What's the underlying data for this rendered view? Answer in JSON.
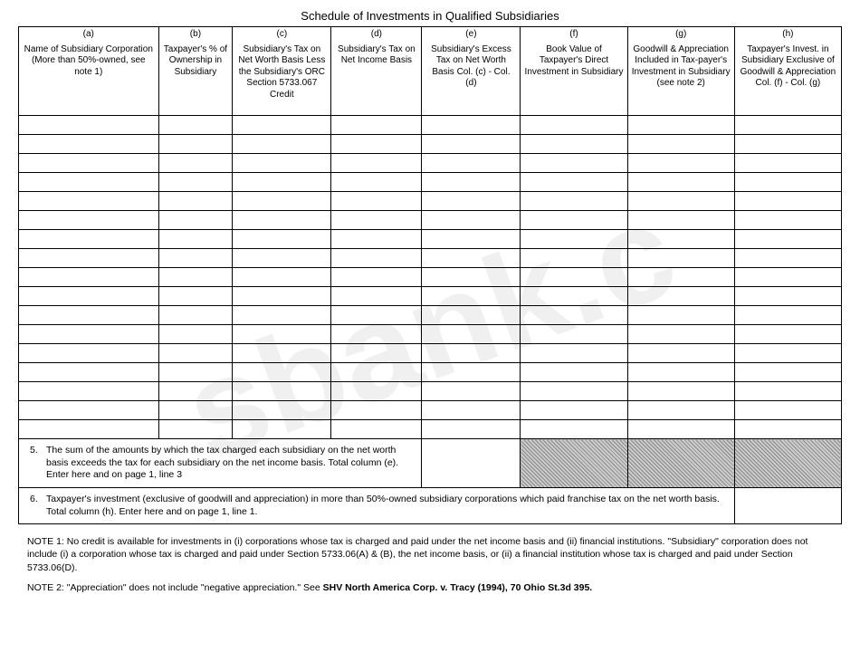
{
  "title": "Schedule of Investments in Qualified Subsidiaries",
  "columns": {
    "a": {
      "letter": "(a)",
      "text": "Name of Subsidiary Corporation (More than 50%-owned, see note 1)"
    },
    "b": {
      "letter": "(b)",
      "text": "Taxpayer's % of Ownership in Subsidiary"
    },
    "c": {
      "letter": "(c)",
      "text": "Subsidiary's Tax on Net Worth Basis Less the Subsidiary's ORC Section 5733.067 Credit"
    },
    "d": {
      "letter": "(d)",
      "text": "Subsidiary's Tax on Net Income Basis"
    },
    "e": {
      "letter": "(e)",
      "text": "Subsidiary's Excess Tax on Net Worth Basis Col. (c) - Col. (d)"
    },
    "f": {
      "letter": "(f)",
      "text": "Book Value of Taxpayer's Direct Investment in Subsidiary"
    },
    "g": {
      "letter": "(g)",
      "text": "Goodwill & Appreciation Included in Tax-payer's Investment in Subsidiary (see note 2)"
    },
    "h": {
      "letter": "(h)",
      "text": "Taxpayer's Invest. in Subsidiary Exclusive of Goodwill & Appreciation Col. (f) - Col. (g)"
    }
  },
  "rowCount": 17,
  "footer5": {
    "num": "5.",
    "text": "The sum of the amounts by which the tax charged each subsidiary on the net worth basis exceeds the tax for each subsidiary on the net income basis. Total column (e). Enter here and on page 1, line 3"
  },
  "footer6": {
    "num": "6.",
    "text": "Taxpayer's investment (exclusive of goodwill and appreciation) in more than 50%-owned subsidiary corporations which paid franchise tax on the net worth basis. Total column (h). Enter here and on page 1, line 1."
  },
  "note1": {
    "label": "NOTE 1:",
    "text": "No credit is available for investments in (i) corporations whose tax is charged and paid under the net income basis and (ii) financial institutions. \"Subsidiary\" corporation does not include (i) a corporation whose tax is charged and paid under Section 5733.06(A) & (B), the net income basis, or (ii) a financial institution whose tax is charged and paid under Section 5733.06(D)."
  },
  "note2": {
    "label": "NOTE 2:",
    "text_pre": "\"Appreciation\" does not include \"negative appreciation.\" See ",
    "text_bold": "SHV North America Corp. v. Tracy (1994), 70 Ohio St.3d 395.",
    "text_post": ""
  },
  "watermark": "sbank.c"
}
